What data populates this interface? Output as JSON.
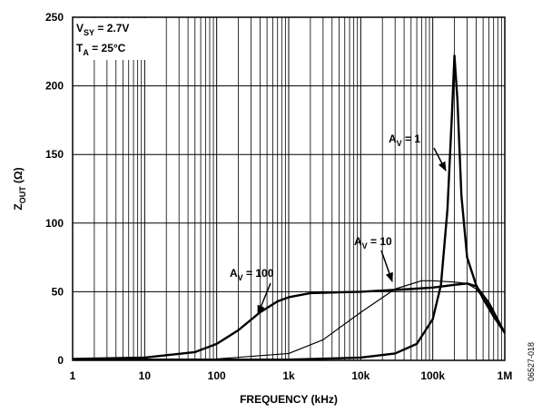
{
  "chart_data": {
    "type": "line",
    "ylabel_parts": [
      "Z",
      "OUT",
      " (Ω)"
    ],
    "xlabel": "FREQUENCY (kHz)",
    "figure_id": "06527-018",
    "annotations": [
      {
        "parts": [
          "V",
          "SY",
          " = 2.7V"
        ]
      },
      {
        "parts": [
          "T",
          "A",
          " = 25°C"
        ]
      }
    ],
    "xscale": "log",
    "grid": true,
    "xlim": [
      1,
      1000000
    ],
    "xticks": [
      1,
      10,
      100,
      {
        "value": 1000,
        "label": "1k"
      },
      {
        "value": 10000,
        "label": "10k"
      },
      {
        "value": 100000,
        "label": "100k"
      },
      {
        "value": 1000000,
        "label": "1M"
      }
    ],
    "xminor": [
      2,
      3,
      4,
      5,
      6,
      7,
      8,
      9,
      20,
      30,
      40,
      50,
      60,
      70,
      80,
      90,
      200,
      300,
      400,
      500,
      600,
      700,
      800,
      900,
      2000,
      3000,
      4000,
      5000,
      6000,
      7000,
      8000,
      9000,
      20000,
      30000,
      40000,
      50000,
      60000,
      70000,
      80000,
      90000,
      200000,
      300000,
      400000,
      500000,
      600000,
      700000,
      800000,
      900000
    ],
    "ylim": [
      0,
      250
    ],
    "yticks": [
      0,
      50,
      100,
      150,
      200,
      250
    ],
    "series": [
      {
        "name_parts": [
          "A",
          "V",
          " = 1"
        ],
        "color": "#000",
        "width": 2.4,
        "x": [
          1,
          1000,
          10000,
          30000,
          60000,
          100000,
          130000,
          160000,
          185000,
          200000,
          220000,
          250000,
          300000,
          400000,
          500000,
          700000,
          1000000
        ],
        "values": [
          0.5,
          0.5,
          2,
          5,
          12,
          30,
          55,
          110,
          180,
          222,
          190,
          120,
          75,
          55,
          45,
          32,
          20
        ]
      },
      {
        "name_parts": [
          "A",
          "V",
          " = 10"
        ],
        "color": "#000",
        "width": 1.2,
        "x": [
          1,
          100,
          1000,
          3000,
          10000,
          30000,
          70000,
          100000,
          200000,
          300000,
          400000,
          600000,
          1000000
        ],
        "values": [
          0.5,
          1,
          5,
          15,
          35,
          52,
          58,
          58,
          57,
          56,
          52,
          40,
          20
        ]
      },
      {
        "name_parts": [
          "A",
          "V",
          " = 100"
        ],
        "color": "#000",
        "width": 2.4,
        "x": [
          1,
          10,
          50,
          100,
          200,
          400,
          700,
          1000,
          2000,
          10000,
          50000,
          100000,
          200000,
          300000,
          400000,
          600000,
          1000000
        ],
        "values": [
          1,
          2,
          6,
          12,
          22,
          35,
          43,
          46,
          49,
          50,
          52,
          53,
          55,
          56,
          54,
          42,
          20
        ]
      }
    ]
  }
}
